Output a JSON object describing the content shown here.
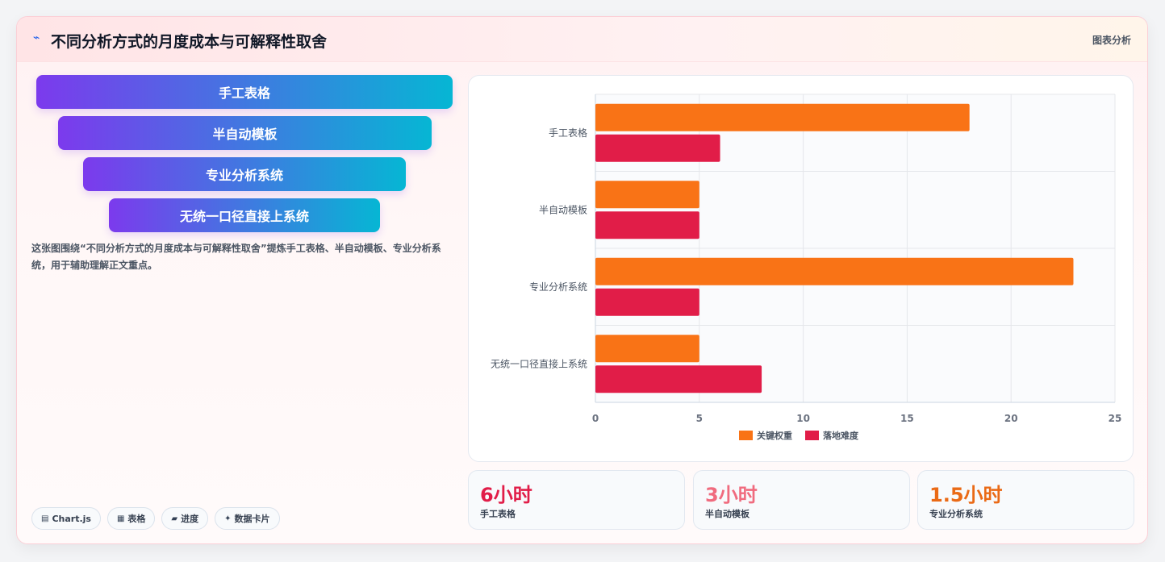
{
  "header": {
    "icon": "pin-icon",
    "title": "不同分析方式的月度成本与可解释性取舍",
    "tag": "图表分析"
  },
  "funnel": {
    "items": [
      "手工表格",
      "半自动模板",
      "专业分析系统",
      "无统一口径直接上系统"
    ]
  },
  "description": "这张图围绕“不同分析方式的月度成本与可解释性取舍”提炼手工表格、半自动模板、专业分析系统，用于辅助理解正文重点。",
  "chips": [
    {
      "icon": "chart-icon",
      "glyph": "▤",
      "label": "Chart.js"
    },
    {
      "icon": "table-icon",
      "glyph": "▦",
      "label": "表格"
    },
    {
      "icon": "progress-icon",
      "glyph": "▰",
      "label": "进度"
    },
    {
      "icon": "sparkle-icon",
      "glyph": "✦",
      "label": "数据卡片"
    }
  ],
  "chart_data": {
    "type": "bar",
    "orientation": "horizontal",
    "categories": [
      "手工表格",
      "半自动模板",
      "专业分析系统",
      "无统一口径直接上系统"
    ],
    "series": [
      {
        "name": "关键权重",
        "color": "#f97316",
        "values": [
          18,
          5,
          23,
          5
        ]
      },
      {
        "name": "落地难度",
        "color": "#e11d48",
        "values": [
          6,
          5,
          5,
          8
        ]
      }
    ],
    "xlim": [
      0,
      25
    ],
    "xticks": [
      "0",
      "5",
      "10",
      "15",
      "20",
      "25"
    ],
    "grid": true,
    "legend": "bottom"
  },
  "stats": [
    {
      "value": "6小时",
      "label": "手工表格",
      "color": "#e11d48"
    },
    {
      "value": "3小时",
      "label": "半自动模板",
      "color": "#f06b7e"
    },
    {
      "value": "1.5小时",
      "label": "专业分析系统",
      "color": "#ea6a16"
    }
  ]
}
